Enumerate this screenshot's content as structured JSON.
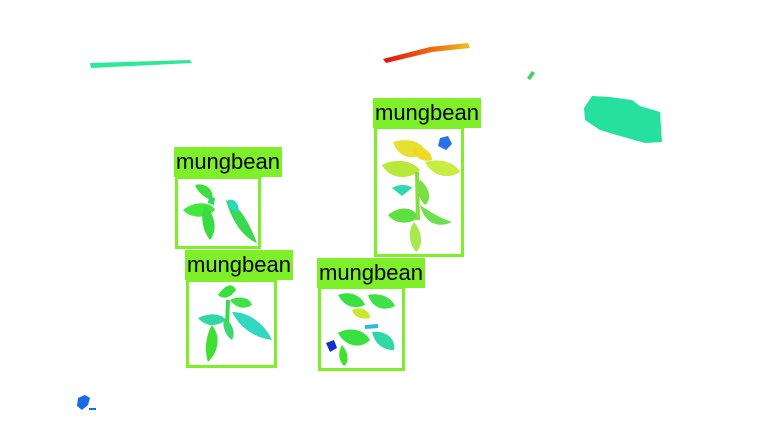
{
  "scene": {
    "background_color": "#ffffff",
    "box_color": "#7df02a",
    "label_text_color": "#000000"
  },
  "detections": [
    {
      "label": "mungbean"
    },
    {
      "label": "mungbean"
    },
    {
      "label": "mungbean"
    },
    {
      "label": "mungbean"
    }
  ]
}
